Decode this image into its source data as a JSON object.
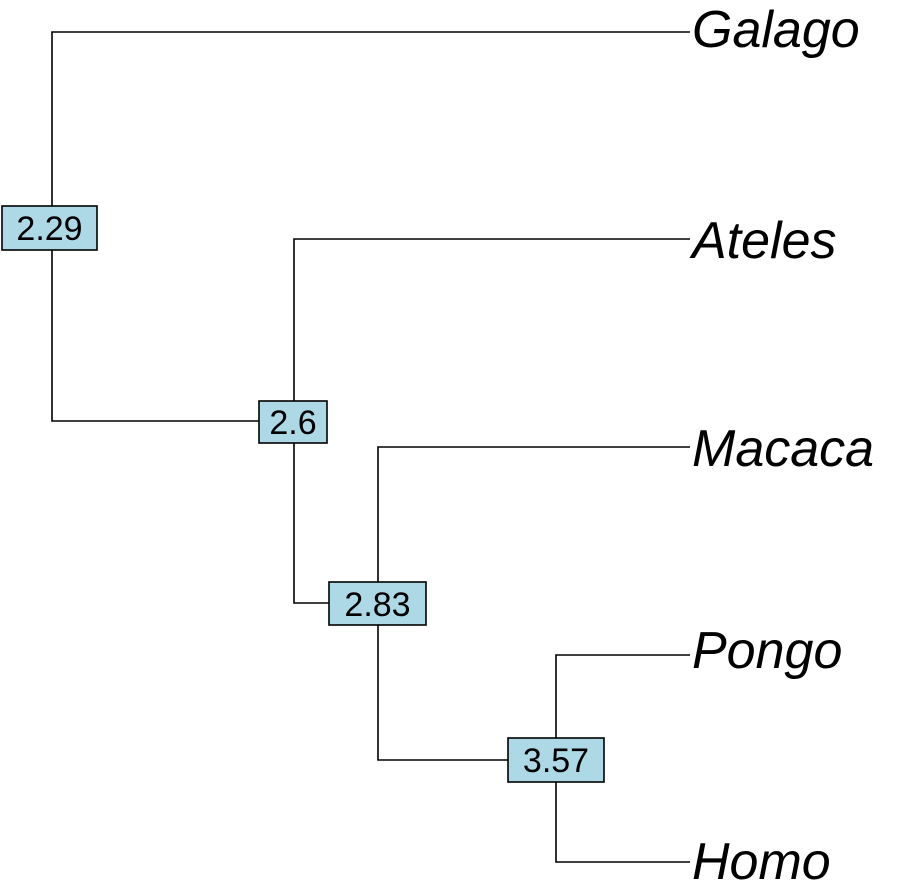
{
  "tree": {
    "tips": [
      {
        "id": "galago",
        "label": "Galago"
      },
      {
        "id": "ateles",
        "label": "Ateles"
      },
      {
        "id": "macaca",
        "label": "Macaca"
      },
      {
        "id": "pongo",
        "label": "Pongo"
      },
      {
        "id": "homo",
        "label": "Homo"
      }
    ],
    "nodes": [
      {
        "id": "n1",
        "label": "2.29"
      },
      {
        "id": "n2",
        "label": "2.6"
      },
      {
        "id": "n3",
        "label": "2.83"
      },
      {
        "id": "n4",
        "label": "3.57"
      }
    ],
    "node_box_color": "#add8e6",
    "line_color": "#000000"
  }
}
